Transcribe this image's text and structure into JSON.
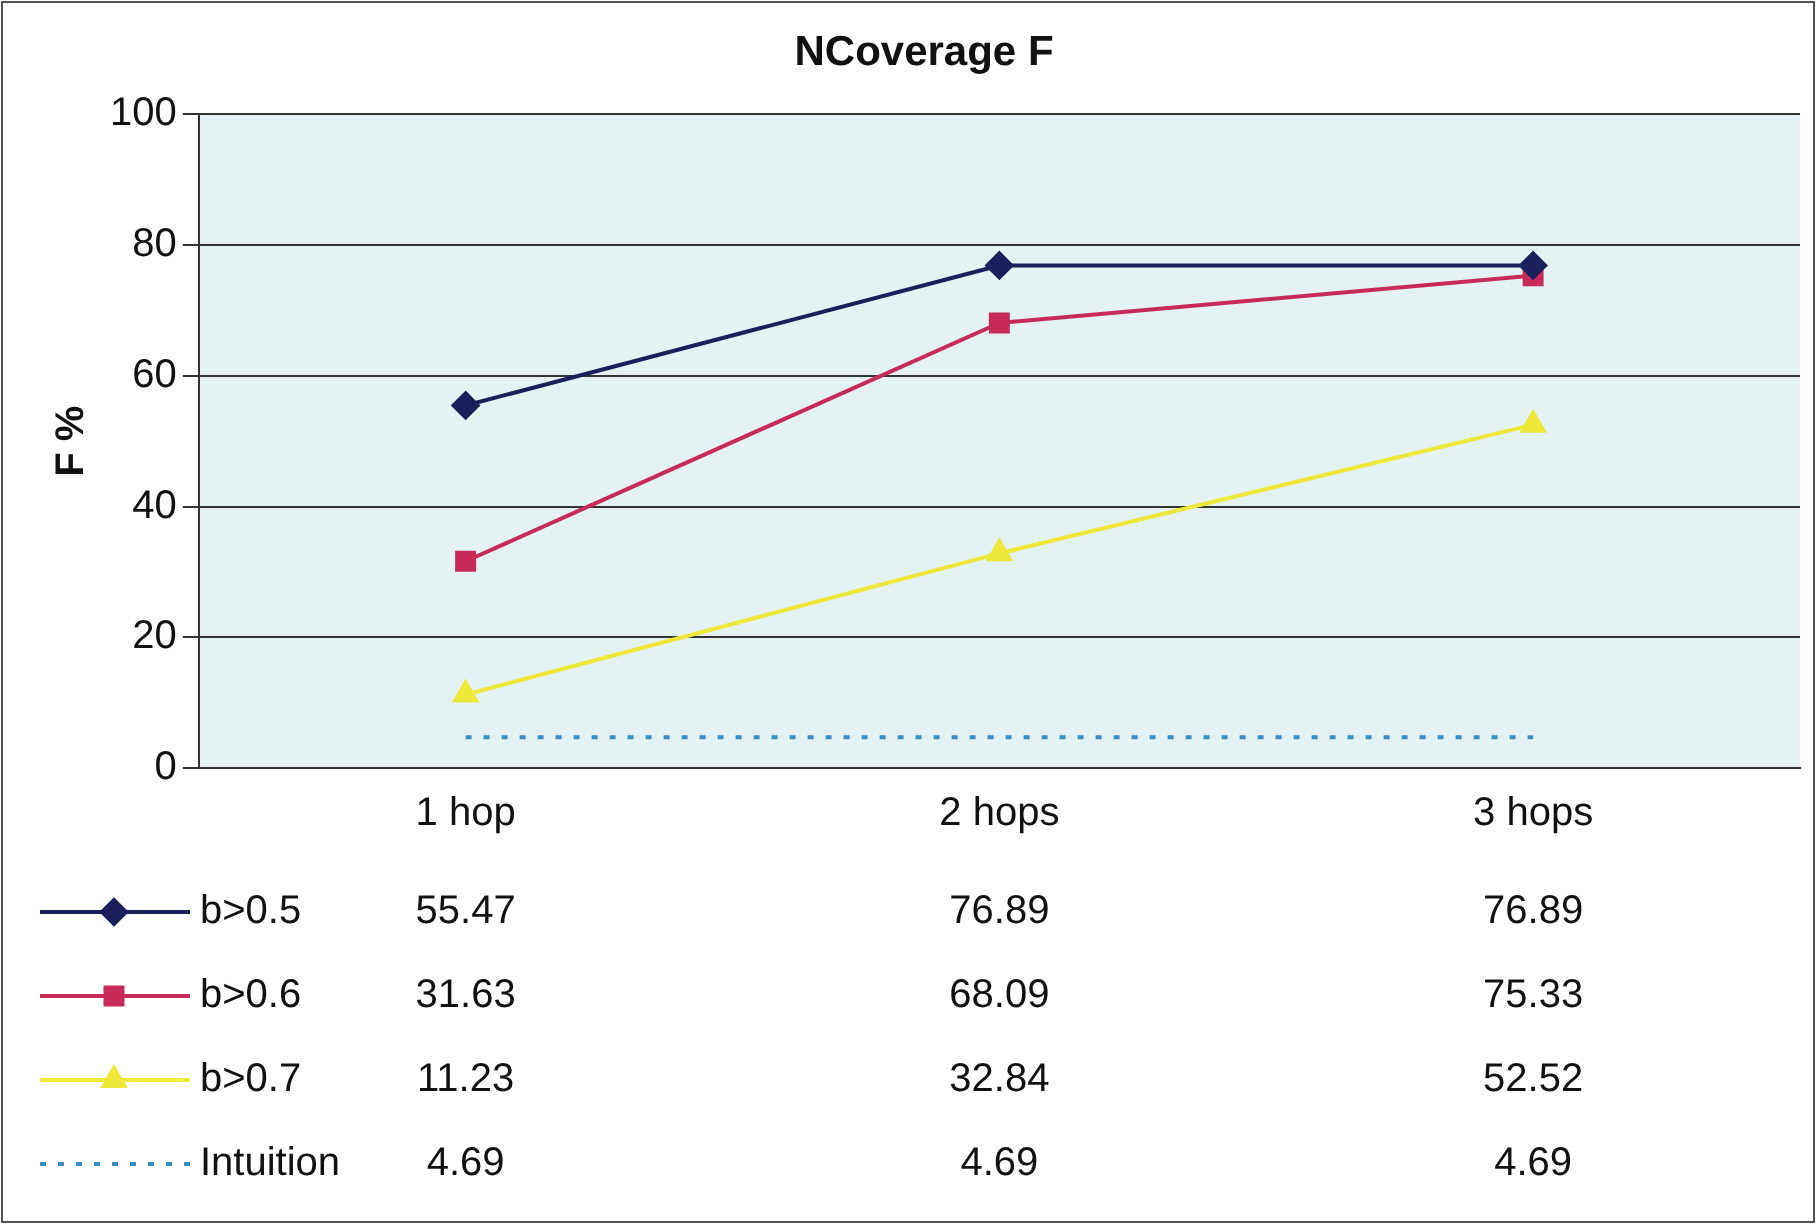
{
  "chart_data": {
    "type": "line",
    "title": "NCoverage F",
    "ylabel": "F %",
    "categories": [
      "1 hop",
      "2 hops",
      "3 hops"
    ],
    "series": [
      {
        "name": "b>0.5",
        "color": "#1b1f5c",
        "marker": "diamond",
        "values": [
          55.47,
          76.89,
          76.89
        ]
      },
      {
        "name": "b>0.6",
        "color": "#c82a5a",
        "marker": "square",
        "values": [
          31.63,
          68.09,
          75.33
        ]
      },
      {
        "name": "b>0.7",
        "color": "#eee838",
        "marker": "triangle",
        "values": [
          11.23,
          32.84,
          52.52
        ]
      },
      {
        "name": "Intuition",
        "color": "#3a8ec6",
        "marker": "none",
        "line_style": "dotted",
        "values": [
          4.69,
          4.69,
          4.69
        ]
      }
    ],
    "ylim": [
      0,
      100
    ],
    "yticks": [
      0,
      20,
      40,
      60,
      80,
      100
    ],
    "grid": "y",
    "legend": "bottom",
    "data_labels": true
  }
}
